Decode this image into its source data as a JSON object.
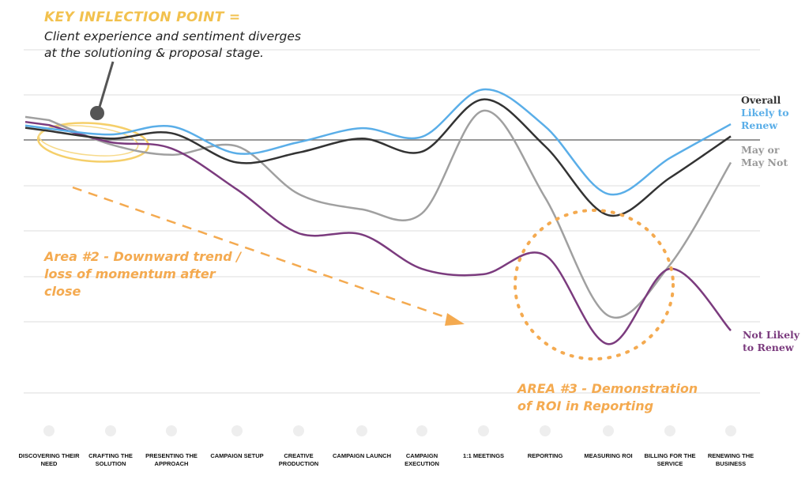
{
  "chart_data": {
    "type": "line",
    "title": "",
    "xlabel": "",
    "ylabel": "",
    "ylim": [
      -5.4,
      2.0
    ],
    "grid": true,
    "categories": [
      "DISCOVERING THEIR NEED",
      "CRAFTING THE SOLUTION",
      "PRESENTING THE APPROACH",
      "CAMPAIGN SETUP",
      "CREATIVE PRODUCTION",
      "CAMPAIGN LAUNCH",
      "CAMPAIGN EXECUTION",
      "1:1 MEETINGS",
      "REPORTING",
      "MEASURING ROI",
      "BILLING FOR THE SERVICE",
      "RENEWING THE BUSINESS"
    ],
    "series": [
      {
        "name": "May or May Not",
        "color": "#a0a0a0",
        "values": [
          0.44,
          -0.1,
          -0.33,
          -0.14,
          -1.2,
          -1.54,
          -1.63,
          0.65,
          -1.28,
          -3.9,
          -2.77,
          -0.5
        ]
      },
      {
        "name": "Not Likely to Renew",
        "color": "#7b3b7e",
        "values": [
          0.33,
          -0.05,
          -0.19,
          -1.1,
          -2.07,
          -2.1,
          -2.86,
          -2.98,
          -2.56,
          -4.53,
          -2.86,
          -4.23
        ]
      },
      {
        "name": "Likely to Renew",
        "color": "#5aaee8",
        "values": [
          0.25,
          0.12,
          0.3,
          -0.3,
          -0.05,
          0.26,
          0.07,
          1.12,
          0.3,
          -1.2,
          -0.4,
          0.35
        ]
      },
      {
        "name": "Overall",
        "color": "#333333",
        "values": [
          0.2,
          0.03,
          0.15,
          -0.5,
          -0.28,
          0.03,
          -0.26,
          0.9,
          -0.14,
          -1.67,
          -0.84,
          0.08
        ]
      }
    ],
    "annotations": {
      "key_title": "KEY INFLECTION POINT =",
      "key_body": "Client experience and sentiment diverges at the solutioning & proposal stage.",
      "area2": "Area #2 - Downward trend / loss of momentum after close",
      "area3": "AREA #3 - Demonstration of ROI in Reporting"
    },
    "legend_labels": {
      "overall": "Overall",
      "likely": "Likely to Renew",
      "maybe": "May or May Not",
      "not_likely": "Not Likely to Renew"
    },
    "colors": {
      "accent_yellow": "#f2c14e",
      "accent_orange": "#f4aa50"
    }
  }
}
